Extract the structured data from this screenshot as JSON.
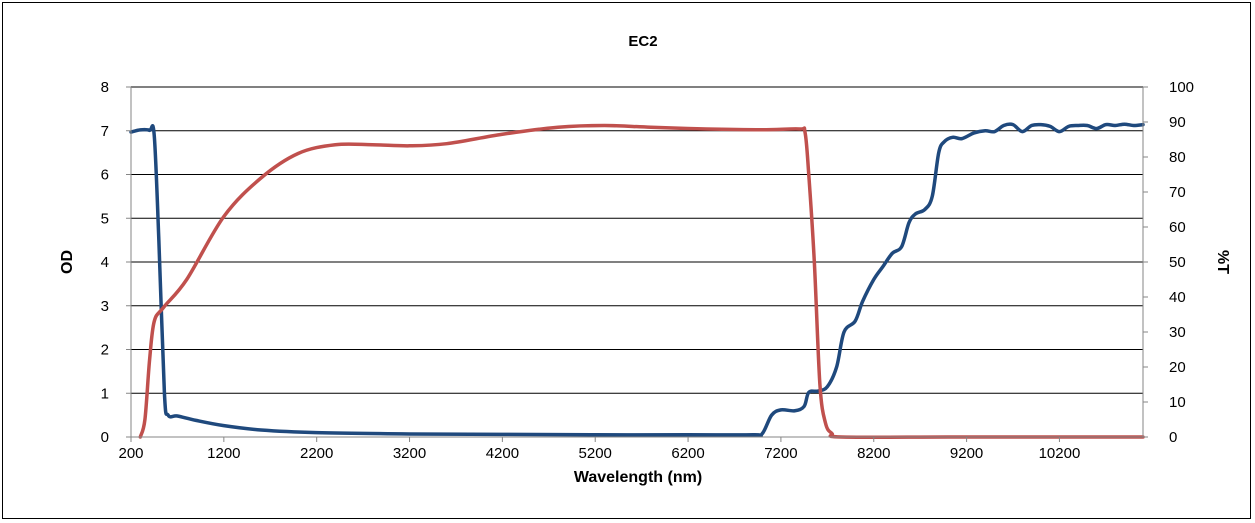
{
  "chart_data": {
    "type": "line",
    "title": "EC2",
    "xlabel": "Wavelength (nm)",
    "ylabel": "OD",
    "y2label": "%T",
    "xlim": [
      200,
      11100
    ],
    "ylim": [
      0,
      8
    ],
    "y2lim": [
      0,
      100
    ],
    "x_ticks": [
      200,
      1200,
      2200,
      3200,
      4200,
      5200,
      6200,
      7200,
      8200,
      9200,
      10200
    ],
    "y_ticks": [
      0,
      1,
      2,
      3,
      4,
      5,
      6,
      7,
      8
    ],
    "y2_ticks": [
      0,
      10,
      20,
      30,
      40,
      50,
      60,
      70,
      80,
      90,
      100
    ],
    "grid": "horizontal",
    "series": [
      {
        "axis": "left",
        "color": "#1F497D",
        "points": [
          [
            200,
            6.97
          ],
          [
            300,
            7.02
          ],
          [
            400,
            7.01
          ],
          [
            450,
            6.9
          ],
          [
            500,
            4.5
          ],
          [
            560,
            1.0
          ],
          [
            600,
            0.5
          ],
          [
            700,
            0.48
          ],
          [
            900,
            0.38
          ],
          [
            1200,
            0.26
          ],
          [
            1600,
            0.16
          ],
          [
            2200,
            0.1
          ],
          [
            3200,
            0.07
          ],
          [
            4200,
            0.06
          ],
          [
            5200,
            0.05
          ],
          [
            6200,
            0.05
          ],
          [
            6900,
            0.05
          ],
          [
            7000,
            0.08
          ],
          [
            7100,
            0.5
          ],
          [
            7200,
            0.62
          ],
          [
            7350,
            0.6
          ],
          [
            7450,
            0.7
          ],
          [
            7500,
            1.02
          ],
          [
            7600,
            1.05
          ],
          [
            7700,
            1.15
          ],
          [
            7800,
            1.6
          ],
          [
            7880,
            2.4
          ],
          [
            8000,
            2.65
          ],
          [
            8080,
            3.1
          ],
          [
            8200,
            3.6
          ],
          [
            8300,
            3.9
          ],
          [
            8400,
            4.2
          ],
          [
            8500,
            4.35
          ],
          [
            8580,
            4.9
          ],
          [
            8650,
            5.1
          ],
          [
            8750,
            5.2
          ],
          [
            8830,
            5.5
          ],
          [
            8900,
            6.5
          ],
          [
            8960,
            6.75
          ],
          [
            9050,
            6.85
          ],
          [
            9150,
            6.82
          ],
          [
            9280,
            6.95
          ],
          [
            9400,
            7.0
          ],
          [
            9500,
            6.98
          ],
          [
            9600,
            7.12
          ],
          [
            9700,
            7.14
          ],
          [
            9800,
            6.98
          ],
          [
            9900,
            7.12
          ],
          [
            10000,
            7.14
          ],
          [
            10100,
            7.1
          ],
          [
            10200,
            6.98
          ],
          [
            10300,
            7.1
          ],
          [
            10400,
            7.12
          ],
          [
            10500,
            7.12
          ],
          [
            10600,
            7.05
          ],
          [
            10700,
            7.14
          ],
          [
            10800,
            7.12
          ],
          [
            10900,
            7.15
          ],
          [
            11000,
            7.12
          ],
          [
            11100,
            7.14
          ]
        ]
      },
      {
        "axis": "right",
        "color": "#C0504D",
        "points": [
          [
            300,
            0
          ],
          [
            350,
            5
          ],
          [
            400,
            22
          ],
          [
            450,
            33
          ],
          [
            550,
            37
          ],
          [
            800,
            45
          ],
          [
            1200,
            63
          ],
          [
            1600,
            74
          ],
          [
            2000,
            81
          ],
          [
            2400,
            83.5
          ],
          [
            2800,
            83.5
          ],
          [
            3200,
            83.2
          ],
          [
            3600,
            83.8
          ],
          [
            4200,
            86.5
          ],
          [
            4800,
            88.5
          ],
          [
            5300,
            89
          ],
          [
            5800,
            88.5
          ],
          [
            6400,
            88
          ],
          [
            7000,
            87.8
          ],
          [
            7400,
            88
          ],
          [
            7460,
            87
          ],
          [
            7500,
            75
          ],
          [
            7560,
            50
          ],
          [
            7620,
            15
          ],
          [
            7680,
            4
          ],
          [
            7750,
            1
          ],
          [
            7850,
            0
          ],
          [
            9000,
            0
          ],
          [
            10200,
            0
          ],
          [
            11100,
            0
          ]
        ]
      }
    ]
  }
}
